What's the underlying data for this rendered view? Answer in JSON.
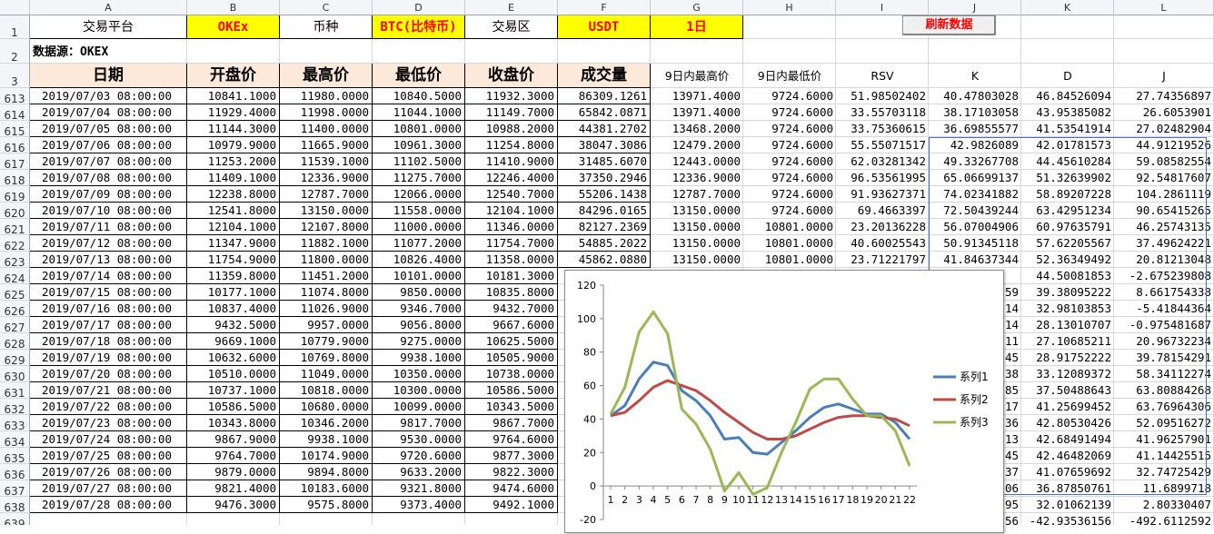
{
  "columns": [
    "A",
    "B",
    "C",
    "D",
    "E",
    "F",
    "G",
    "H",
    "I",
    "J",
    "K",
    "L"
  ],
  "row1": {
    "platform_label": "交易平台",
    "platform": "OKEx",
    "coin_label": "币种",
    "coin": "BTC(比特币)",
    "zone_label": "交易区",
    "zone": "USDT",
    "period": "1日"
  },
  "refresh_label": "刷新数据",
  "row2": {
    "source": "数据源：OKEX"
  },
  "headers": [
    "日期",
    "开盘价",
    "最高价",
    "最低价",
    "收盘价",
    "成交量",
    "9日内最高价",
    "9日内最低价",
    "RSV",
    "K",
    "D",
    "J"
  ],
  "rows": [
    {
      "n": "613",
      "date": "2019/07/03 08:00:00",
      "open": "10841.1000",
      "high": "11980.0000",
      "low": "10840.5000",
      "close": "11932.3000",
      "vol": "86309.1261",
      "h9": "13971.4000",
      "l9": "9724.6000",
      "rsv": "51.98502402",
      "k": "40.47803028",
      "d": "46.84526094",
      "j": "27.74356897"
    },
    {
      "n": "614",
      "date": "2019/07/04 08:00:00",
      "open": "11929.4000",
      "high": "11998.0000",
      "low": "11044.1000",
      "close": "11149.7000",
      "vol": "65842.0871",
      "h9": "13971.4000",
      "l9": "9724.6000",
      "rsv": "33.55703118",
      "k": "38.17103058",
      "d": "43.95385082",
      "j": "26.6053901"
    },
    {
      "n": "615",
      "date": "2019/07/05 08:00:00",
      "open": "11144.3000",
      "high": "11400.0000",
      "low": "10801.0000",
      "close": "10988.2000",
      "vol": "44381.2702",
      "h9": "13468.2000",
      "l9": "9724.6000",
      "rsv": "33.75360615",
      "k": "36.69855577",
      "d": "41.53541914",
      "j": "27.02482904"
    },
    {
      "n": "616",
      "date": "2019/07/06 08:00:00",
      "open": "10979.9000",
      "high": "11665.9000",
      "low": "10961.3000",
      "close": "11254.8000",
      "vol": "38047.3086",
      "h9": "12479.2000",
      "l9": "9724.6000",
      "rsv": "55.55071517",
      "k": "42.9826089",
      "d": "42.01781573",
      "j": "44.91219526"
    },
    {
      "n": "617",
      "date": "2019/07/07 08:00:00",
      "open": "11253.2000",
      "high": "11539.1000",
      "low": "11102.5000",
      "close": "11410.9000",
      "vol": "31485.6070",
      "h9": "12443.0000",
      "l9": "9724.6000",
      "rsv": "62.03281342",
      "k": "49.33267708",
      "d": "44.45610284",
      "j": "59.08582554"
    },
    {
      "n": "618",
      "date": "2019/07/08 08:00:00",
      "open": "11409.1000",
      "high": "12336.9000",
      "low": "11275.7000",
      "close": "12246.4000",
      "vol": "37350.2946",
      "h9": "12336.9000",
      "l9": "9724.6000",
      "rsv": "96.53561995",
      "k": "65.06699137",
      "d": "51.32639902",
      "j": "92.54817607"
    },
    {
      "n": "619",
      "date": "2019/07/09 08:00:00",
      "open": "12238.8000",
      "high": "12787.7000",
      "low": "12066.0000",
      "close": "12540.7000",
      "vol": "55206.1438",
      "h9": "12787.7000",
      "l9": "9724.6000",
      "rsv": "91.93627371",
      "k": "74.02341882",
      "d": "58.89207228",
      "j": "104.2861119"
    },
    {
      "n": "620",
      "date": "2019/07/10 08:00:00",
      "open": "12541.8000",
      "high": "13150.0000",
      "low": "11558.0000",
      "close": "12104.1000",
      "vol": "84296.0165",
      "h9": "13150.0000",
      "l9": "9724.6000",
      "rsv": "69.4663397",
      "k": "72.50439244",
      "d": "63.42951234",
      "j": "90.65415265"
    },
    {
      "n": "621",
      "date": "2019/07/11 08:00:00",
      "open": "12104.1000",
      "high": "12107.8000",
      "low": "11000.0000",
      "close": "11346.0000",
      "vol": "82127.2369",
      "h9": "13150.0000",
      "l9": "10801.0000",
      "rsv": "23.20136228",
      "k": "56.07004906",
      "d": "60.97635791",
      "j": "46.25743135"
    },
    {
      "n": "622",
      "date": "2019/07/12 08:00:00",
      "open": "11347.9000",
      "high": "11882.1000",
      "low": "11077.2000",
      "close": "11754.7000",
      "vol": "54885.2022",
      "h9": "13150.0000",
      "l9": "10801.0000",
      "rsv": "40.60025543",
      "k": "50.91345118",
      "d": "57.62205567",
      "j": "37.49624221"
    },
    {
      "n": "623",
      "date": "2019/07/13 08:00:00",
      "open": "11754.9000",
      "high": "11800.0000",
      "low": "10826.4000",
      "close": "11358.0000",
      "vol": "45862.0880",
      "h9": "13150.0000",
      "l9": "10801.0000",
      "rsv": "23.71221797",
      "k": "41.84637344",
      "d": "52.36349492",
      "j": "20.81213048"
    },
    {
      "n": "624",
      "date": "2019/07/14 08:00:00",
      "open": "11359.8000",
      "high": "11451.2000",
      "low": "10101.0000",
      "close": "10181.3000",
      "vol": "",
      "h9": "",
      "l9": "",
      "rsv": "",
      "k": "",
      "d": "44.50081853",
      "j": "-2.675239808"
    },
    {
      "n": "625",
      "date": "2019/07/15 08:00:00",
      "open": "10177.1000",
      "high": "11074.8000",
      "low": "9850.0000",
      "close": "10835.8000",
      "vol": "",
      "h9": "",
      "l9": "",
      "rsv": "",
      "k": "59",
      "d": "39.38095222",
      "j": "8.661754338"
    },
    {
      "n": "626",
      "date": "2019/07/16 08:00:00",
      "open": "10837.4000",
      "high": "11026.9000",
      "low": "9346.7000",
      "close": "9432.7000",
      "vol": "",
      "h9": "",
      "l9": "",
      "rsv": "",
      "k": "14",
      "d": "32.98103853",
      "j": "-5.41844364"
    },
    {
      "n": "627",
      "date": "2019/07/17 08:00:00",
      "open": "9432.5000",
      "high": "9957.0000",
      "low": "9056.8000",
      "close": "9667.6000",
      "vol": "",
      "h9": "",
      "l9": "",
      "rsv": "",
      "k": "14",
      "d": "28.13010707",
      "j": "-0.975481687"
    },
    {
      "n": "628",
      "date": "2019/07/18 08:00:00",
      "open": "9669.1000",
      "high": "10779.9000",
      "low": "9275.0000",
      "close": "10625.5000",
      "vol": "",
      "h9": "",
      "l9": "",
      "rsv": "",
      "k": "11",
      "d": "27.10685211",
      "j": "20.96732234"
    },
    {
      "n": "629",
      "date": "2019/07/19 08:00:00",
      "open": "10632.6000",
      "high": "10769.8000",
      "low": "9938.1000",
      "close": "10505.9000",
      "vol": "",
      "h9": "",
      "l9": "",
      "rsv": "",
      "k": "45",
      "d": "28.91752222",
      "j": "39.78154291"
    },
    {
      "n": "630",
      "date": "2019/07/20 08:00:00",
      "open": "10510.0000",
      "high": "11049.0000",
      "low": "10350.0000",
      "close": "10738.0000",
      "vol": "",
      "h9": "",
      "l9": "",
      "rsv": "",
      "k": "38",
      "d": "33.12089372",
      "j": "58.34112274"
    },
    {
      "n": "631",
      "date": "2019/07/21 08:00:00",
      "open": "10737.1000",
      "high": "10818.0000",
      "low": "10300.0000",
      "close": "10586.5000",
      "vol": "",
      "h9": "",
      "l9": "",
      "rsv": "",
      "k": "85",
      "d": "37.50488643",
      "j": "63.80884268"
    },
    {
      "n": "632",
      "date": "2019/07/22 08:00:00",
      "open": "10586.5000",
      "high": "10680.0000",
      "low": "10099.0000",
      "close": "10343.5000",
      "vol": "",
      "h9": "",
      "l9": "",
      "rsv": "",
      "k": "17",
      "d": "41.25699452",
      "j": "63.76964306"
    },
    {
      "n": "633",
      "date": "2019/07/23 08:00:00",
      "open": "10343.8000",
      "high": "10346.2000",
      "low": "9817.7000",
      "close": "9867.7000",
      "vol": "",
      "h9": "",
      "l9": "",
      "rsv": "",
      "k": "36",
      "d": "42.80530426",
      "j": "52.09516272"
    },
    {
      "n": "634",
      "date": "2019/07/24 08:00:00",
      "open": "9867.9000",
      "high": "9938.1000",
      "low": "9530.0000",
      "close": "9764.6000",
      "vol": "",
      "h9": "",
      "l9": "",
      "rsv": "",
      "k": "13",
      "d": "42.68491494",
      "j": "41.96257901"
    },
    {
      "n": "635",
      "date": "2019/07/25 08:00:00",
      "open": "9764.7000",
      "high": "10174.9000",
      "low": "9720.6000",
      "close": "9877.3000",
      "vol": "",
      "h9": "",
      "l9": "",
      "rsv": "",
      "k": "45",
      "d": "42.46482069",
      "j": "41.14425515"
    },
    {
      "n": "636",
      "date": "2019/07/26 08:00:00",
      "open": "9879.0000",
      "high": "9894.8000",
      "low": "9633.2000",
      "close": "9822.3000",
      "vol": "",
      "h9": "",
      "l9": "",
      "rsv": "",
      "k": "37",
      "d": "41.07659692",
      "j": "32.74725429"
    },
    {
      "n": "637",
      "date": "2019/07/27 08:00:00",
      "open": "9821.4000",
      "high": "10183.6000",
      "low": "9321.8000",
      "close": "9474.6000",
      "vol": "",
      "h9": "",
      "l9": "",
      "rsv": "",
      "k": "06",
      "d": "36.87850761",
      "j": "11.6899718"
    },
    {
      "n": "638",
      "date": "2019/07/28 08:00:00",
      "open": "9476.3000",
      "high": "9575.8000",
      "low": "9373.4000",
      "close": "9492.1000",
      "vol": "",
      "h9": "",
      "l9": "",
      "rsv": "",
      "k": "95",
      "d": "32.01062139",
      "j": "2.80330407"
    },
    {
      "n": "639",
      "date": "",
      "open": "",
      "high": "",
      "low": "",
      "close": "",
      "vol": "",
      "h9": "",
      "l9": "",
      "rsv": "",
      "k": "56",
      "d": "-42.93536156",
      "j": "-492.6112592"
    }
  ],
  "chart_data": {
    "type": "line",
    "x": [
      "1",
      "2",
      "3",
      "4",
      "5",
      "6",
      "7",
      "8",
      "9",
      "10",
      "11",
      "12",
      "13",
      "14",
      "15",
      "16",
      "17",
      "18",
      "19",
      "20",
      "21",
      "22"
    ],
    "ylim": [
      -20,
      120
    ],
    "yticks": [
      "120",
      "100",
      "80",
      "60",
      "40",
      "20",
      "0",
      "-20"
    ],
    "series": [
      {
        "name": "系列1",
        "color": "#4a7ebb",
        "values": [
          42,
          48,
          64,
          74,
          72,
          57,
          51,
          42,
          28,
          29,
          20,
          19,
          26,
          33,
          41,
          47,
          49,
          46,
          43,
          43,
          38,
          28
        ]
      },
      {
        "name": "系列2",
        "color": "#be4b48",
        "values": [
          42,
          44,
          51,
          59,
          63,
          60,
          57,
          51,
          44,
          38,
          32,
          28,
          28,
          30,
          34,
          38,
          41,
          42,
          42,
          41,
          40,
          36
        ]
      },
      {
        "name": "系列3",
        "color": "#98b954",
        "values": [
          43,
          59,
          92,
          104,
          91,
          46,
          37,
          22,
          -3,
          8,
          -5,
          -1,
          20,
          38,
          58,
          64,
          64,
          52,
          42,
          42,
          33,
          12
        ]
      }
    ]
  }
}
